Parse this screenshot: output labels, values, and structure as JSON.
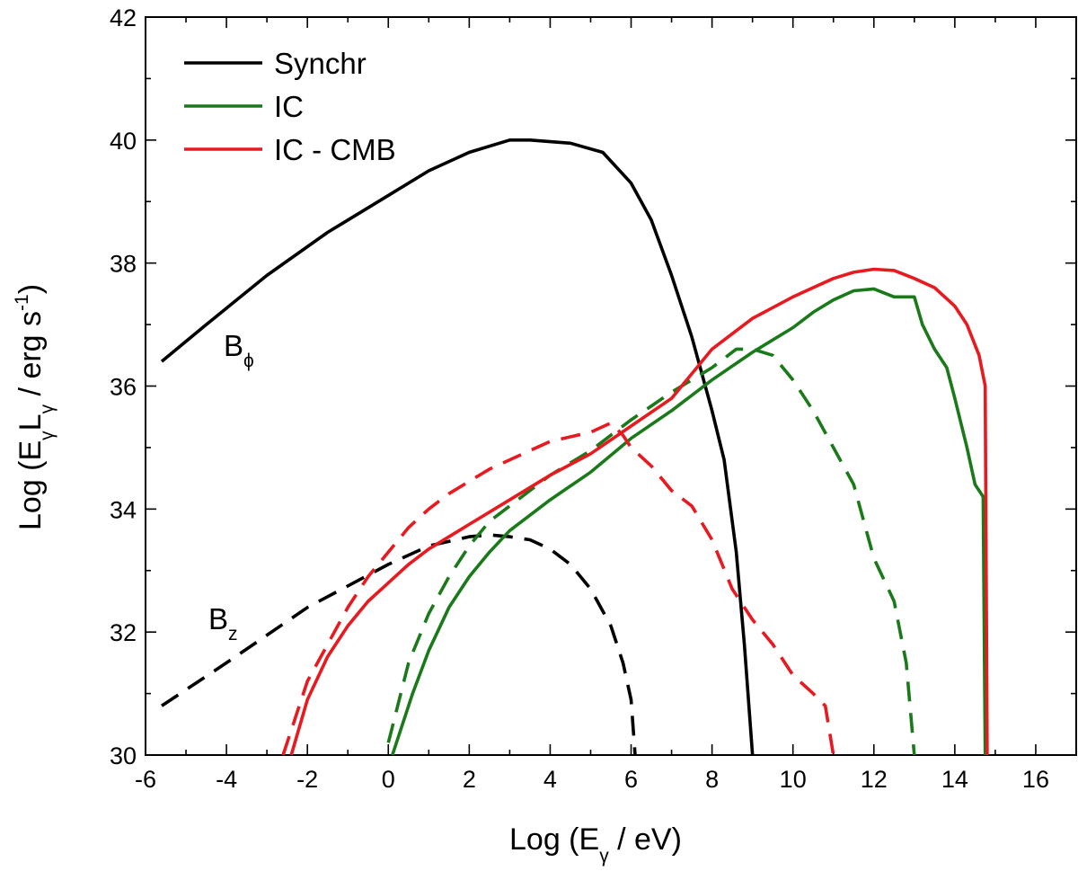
{
  "chart_data": {
    "type": "line",
    "title": "",
    "xlabel_parts": {
      "prefix": "Log (E",
      "sub": "γ",
      "suffix": " / eV)"
    },
    "ylabel_parts": {
      "prefix": "Log (E",
      "sub1": "γ",
      "mid": "L",
      "sub2": "γ",
      "unit": " / erg s",
      "sup": "-1",
      "suffix": ")"
    },
    "xlim": [
      -6,
      17
    ],
    "ylim": [
      30,
      42
    ],
    "xticks": [
      -6,
      -4,
      -2,
      0,
      2,
      4,
      6,
      8,
      10,
      12,
      14,
      16
    ],
    "yticks": [
      30,
      32,
      34,
      36,
      38,
      40,
      42
    ],
    "legend": [
      {
        "label": "Synchr",
        "color": "#000000"
      },
      {
        "label": "IC",
        "color": "#1a7a1a"
      },
      {
        "label": "IC - CMB",
        "color": "#e8191f"
      }
    ],
    "annotations": [
      {
        "base": "B",
        "sub": "ϕ",
        "x": -4.5,
        "y": 36.2
      },
      {
        "base": "B",
        "sub": "z",
        "x": -4.6,
        "y": 31.7
      }
    ],
    "series": [
      {
        "name": "Synchr B_phi",
        "color": "#000000",
        "dash": false,
        "points": [
          [
            -5.6,
            36.4
          ],
          [
            -4.5,
            37.0
          ],
          [
            -3,
            37.8
          ],
          [
            -1.5,
            38.5
          ],
          [
            0,
            39.1
          ],
          [
            1,
            39.5
          ],
          [
            2,
            39.8
          ],
          [
            3,
            40.0
          ],
          [
            3.5,
            40.0
          ],
          [
            4.5,
            39.95
          ],
          [
            5.3,
            39.8
          ],
          [
            6,
            39.3
          ],
          [
            6.5,
            38.7
          ],
          [
            7,
            37.8
          ],
          [
            7.5,
            36.8
          ],
          [
            8,
            35.6
          ],
          [
            8.3,
            34.8
          ],
          [
            8.6,
            33.3
          ],
          [
            8.8,
            31.8
          ],
          [
            9,
            30.0
          ]
        ]
      },
      {
        "name": "Synchr B_z",
        "color": "#000000",
        "dash": true,
        "points": [
          [
            -5.6,
            30.8
          ],
          [
            -4,
            31.5
          ],
          [
            -2,
            32.4
          ],
          [
            0,
            33.1
          ],
          [
            1,
            33.4
          ],
          [
            2,
            33.55
          ],
          [
            2.5,
            33.58
          ],
          [
            3,
            33.55
          ],
          [
            3.5,
            33.5
          ],
          [
            4,
            33.35
          ],
          [
            4.5,
            33.1
          ],
          [
            5,
            32.7
          ],
          [
            5.5,
            32.1
          ],
          [
            5.8,
            31.5
          ],
          [
            6,
            30.9
          ],
          [
            6.1,
            30.0
          ]
        ]
      },
      {
        "name": "IC B_phi",
        "color": "#1a7a1a",
        "dash": false,
        "points": [
          [
            0.1,
            30.0
          ],
          [
            0.6,
            31.0
          ],
          [
            1,
            31.7
          ],
          [
            1.5,
            32.4
          ],
          [
            2,
            32.9
          ],
          [
            2.5,
            33.3
          ],
          [
            3,
            33.65
          ],
          [
            4,
            34.15
          ],
          [
            5,
            34.6
          ],
          [
            6,
            35.15
          ],
          [
            7,
            35.6
          ],
          [
            8,
            36.1
          ],
          [
            9,
            36.55
          ],
          [
            10,
            36.95
          ],
          [
            10.5,
            37.2
          ],
          [
            11,
            37.4
          ],
          [
            11.5,
            37.55
          ],
          [
            12,
            37.58
          ],
          [
            12.5,
            37.45
          ],
          [
            13,
            37.45
          ],
          [
            13.2,
            37.0
          ],
          [
            13.5,
            36.6
          ],
          [
            13.8,
            36.3
          ],
          [
            14,
            35.8
          ],
          [
            14.3,
            35.0
          ],
          [
            14.5,
            34.4
          ],
          [
            14.7,
            34.2
          ],
          [
            14.75,
            30.0
          ]
        ]
      },
      {
        "name": "IC B_z",
        "color": "#1a7a1a",
        "dash": true,
        "points": [
          [
            0,
            30.2
          ],
          [
            0.5,
            31.5
          ],
          [
            1,
            32.3
          ],
          [
            1.5,
            32.9
          ],
          [
            2,
            33.4
          ],
          [
            2.5,
            33.8
          ],
          [
            3,
            34.05
          ],
          [
            4,
            34.55
          ],
          [
            5,
            34.95
          ],
          [
            6,
            35.45
          ],
          [
            7,
            35.9
          ],
          [
            8,
            36.3
          ],
          [
            8.6,
            36.6
          ],
          [
            9,
            36.6
          ],
          [
            9.5,
            36.5
          ],
          [
            10,
            36.1
          ],
          [
            10.5,
            35.6
          ],
          [
            11,
            35.0
          ],
          [
            11.5,
            34.4
          ],
          [
            12,
            33.2
          ],
          [
            12.5,
            32.5
          ],
          [
            12.8,
            31.5
          ],
          [
            13,
            30.0
          ]
        ]
      },
      {
        "name": "IC-CMB B_phi",
        "color": "#e8191f",
        "dash": false,
        "points": [
          [
            -2.4,
            30.0
          ],
          [
            -2,
            30.9
          ],
          [
            -1.5,
            31.6
          ],
          [
            -1,
            32.1
          ],
          [
            -0.5,
            32.5
          ],
          [
            0,
            32.8
          ],
          [
            0.5,
            33.1
          ],
          [
            1,
            33.35
          ],
          [
            2,
            33.75
          ],
          [
            3,
            34.15
          ],
          [
            4,
            34.55
          ],
          [
            5,
            34.9
          ],
          [
            6,
            35.35
          ],
          [
            7,
            35.8
          ],
          [
            8,
            36.6
          ],
          [
            9,
            37.1
          ],
          [
            10,
            37.45
          ],
          [
            10.5,
            37.6
          ],
          [
            11,
            37.75
          ],
          [
            11.5,
            37.85
          ],
          [
            12,
            37.9
          ],
          [
            12.5,
            37.88
          ],
          [
            13,
            37.75
          ],
          [
            13.5,
            37.6
          ],
          [
            14,
            37.3
          ],
          [
            14.3,
            37.0
          ],
          [
            14.6,
            36.5
          ],
          [
            14.75,
            36.0
          ],
          [
            14.8,
            30.0
          ]
        ]
      },
      {
        "name": "IC-CMB B_z",
        "color": "#e8191f",
        "dash": true,
        "points": [
          [
            -2.6,
            30.0
          ],
          [
            -2,
            31.2
          ],
          [
            -1.5,
            31.8
          ],
          [
            -1,
            32.4
          ],
          [
            -0.5,
            32.9
          ],
          [
            0,
            33.3
          ],
          [
            0.5,
            33.7
          ],
          [
            1,
            34.0
          ],
          [
            1.5,
            34.25
          ],
          [
            2,
            34.45
          ],
          [
            2.5,
            34.65
          ],
          [
            3,
            34.8
          ],
          [
            3.5,
            34.95
          ],
          [
            4,
            35.1
          ],
          [
            5,
            35.25
          ],
          [
            5.5,
            35.4
          ],
          [
            5.8,
            35.2
          ],
          [
            6,
            35.0
          ],
          [
            6.5,
            34.7
          ],
          [
            7,
            34.3
          ],
          [
            7.5,
            34.05
          ],
          [
            8,
            33.5
          ],
          [
            8.5,
            32.7
          ],
          [
            9,
            32.2
          ],
          [
            9.5,
            31.8
          ],
          [
            10,
            31.3
          ],
          [
            10.5,
            31.0
          ],
          [
            10.8,
            30.8
          ],
          [
            11,
            30.0
          ]
        ]
      }
    ]
  }
}
